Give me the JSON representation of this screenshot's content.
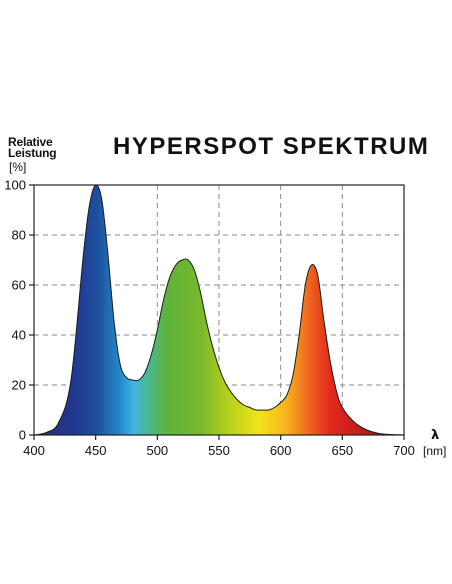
{
  "chart_data": {
    "type": "area",
    "title": "HYPERSPOT SPEKTRUM",
    "ylabel_line1": "Relative",
    "ylabel_line2": "Leistung",
    "ylabel_unit": "[%]",
    "xlabel": "λ",
    "xlabel_unit": "[nm]",
    "xlim": [
      400,
      700
    ],
    "ylim": [
      0,
      100
    ],
    "x_ticks": [
      400,
      450,
      500,
      550,
      600,
      650,
      700
    ],
    "y_ticks": [
      0,
      20,
      40,
      60,
      80,
      100
    ],
    "grid": true,
    "series": [
      {
        "x": [
          400,
          410,
          420,
          430,
          440,
          445,
          450,
          455,
          460,
          465,
          470,
          475,
          480,
          485,
          490,
          495,
          500,
          505,
          510,
          515,
          520,
          525,
          530,
          535,
          540,
          545,
          550,
          555,
          560,
          565,
          570,
          575,
          580,
          585,
          590,
          595,
          600,
          605,
          610,
          615,
          620,
          625,
          630,
          635,
          640,
          645,
          650,
          660,
          670,
          680,
          690,
          700
        ],
        "y": [
          0,
          1,
          5,
          22,
          72,
          92,
          100,
          94,
          72,
          45,
          28,
          23,
          22,
          22,
          25,
          32,
          42,
          54,
          63,
          68,
          70,
          70,
          66,
          57,
          45,
          35,
          27,
          21,
          17,
          14,
          12,
          11,
          10,
          10,
          10,
          11,
          13,
          16,
          24,
          40,
          60,
          68,
          64,
          46,
          30,
          18,
          11,
          5,
          2,
          0.6,
          0.2,
          0
        ]
      }
    ]
  }
}
